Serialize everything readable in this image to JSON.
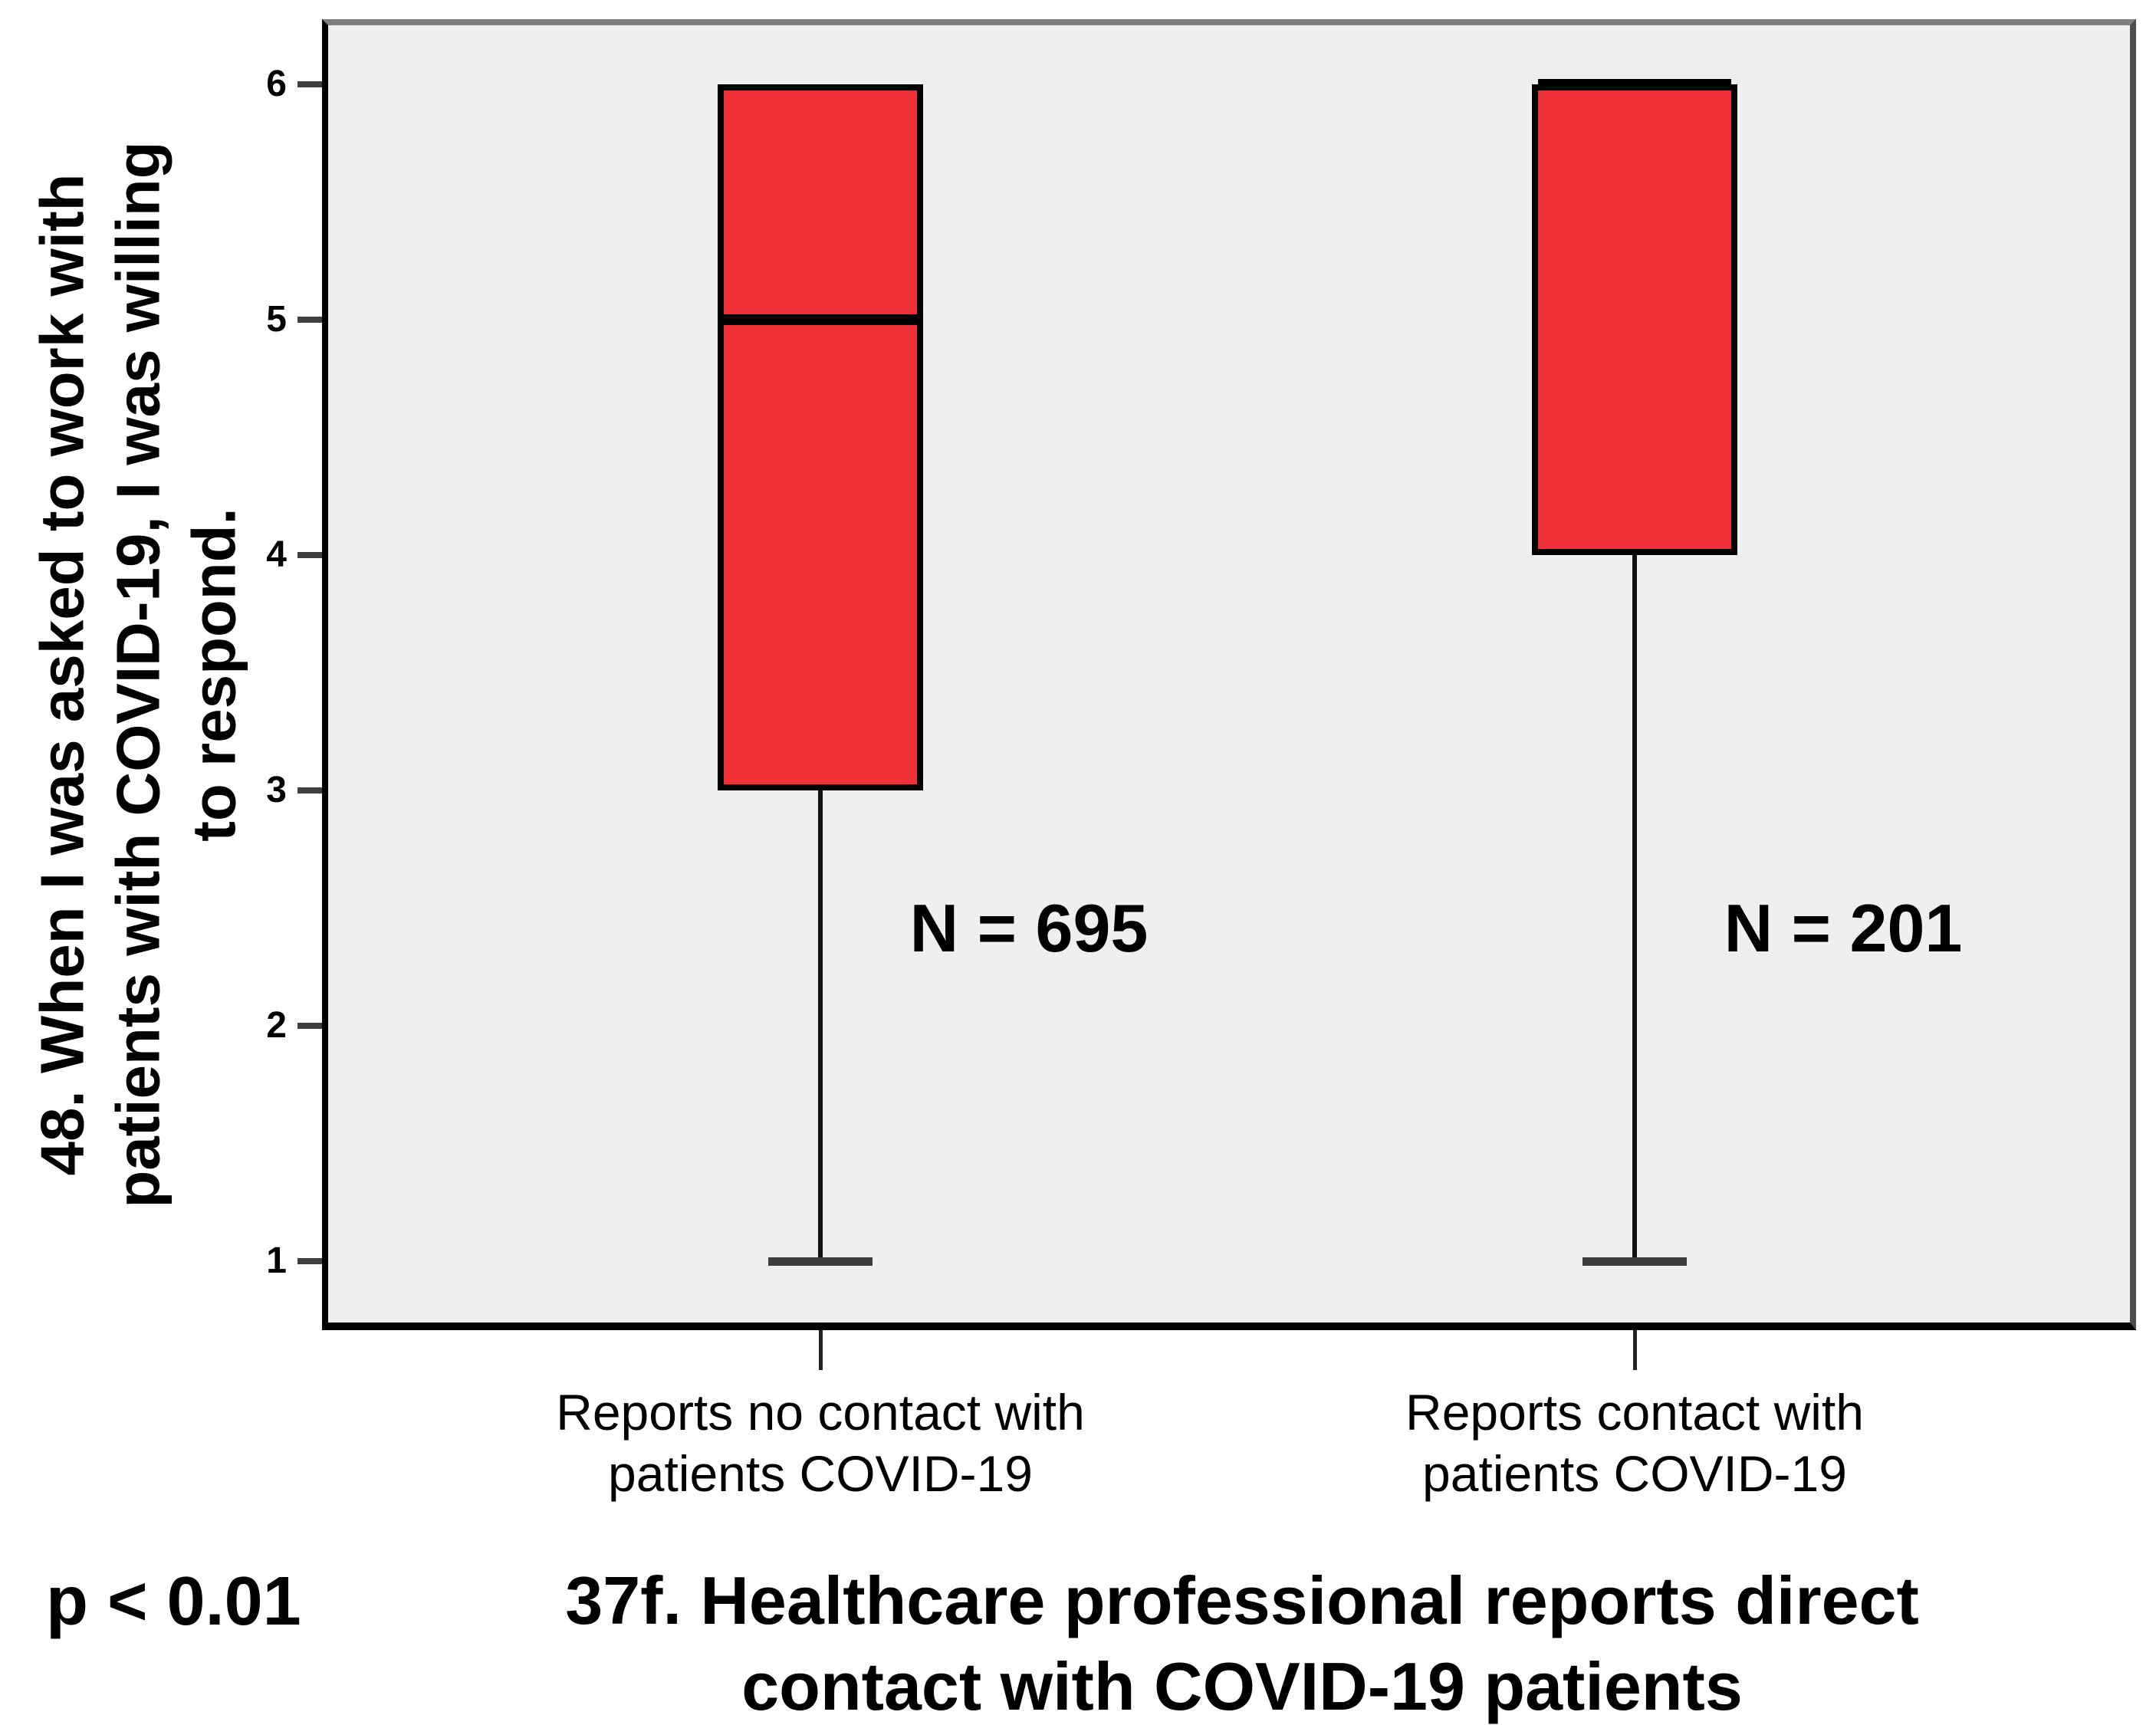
{
  "figure": {
    "y_axis_label": "48. When I was asked to work with\npatients with COVID-19, I was willing\nto respond.",
    "x_axis_title": "37f. Healthcare professional reports direct\ncontact with COVID-19 patients",
    "p_label": "p < 0.01",
    "category_labels": [
      "Reports no contact with\npatients COVID-19",
      "Reports contact with\npatients COVID-19"
    ]
  },
  "chart_data": {
    "type": "boxplot",
    "title": "",
    "xlabel": "37f. Healthcare professional reports direct contact with COVID-19 patients",
    "ylabel": "48. When I was asked to work with patients with COVID-19, I was willing to respond.",
    "yticks": [
      1,
      2,
      3,
      4,
      5,
      6
    ],
    "ylim": [
      1,
      6
    ],
    "grid": false,
    "legend": "none",
    "categories": [
      "Reports no contact with patients COVID-19",
      "Reports contact with patients COVID-19"
    ],
    "series": [
      {
        "name": "Reports no contact with patients COVID-19",
        "n": 695,
        "n_label": "N = 695",
        "min": 1,
        "q1": 3,
        "median": 5,
        "q3": 6,
        "max": 6
      },
      {
        "name": "Reports contact with patients COVID-19",
        "n": 201,
        "n_label": "N = 201",
        "min": 1,
        "q1": 4,
        "median": 6,
        "q3": 6,
        "max": 6
      }
    ],
    "annotations": [
      "N = 695",
      "N = 201",
      "p < 0.01"
    ],
    "box_fill_color": "#ee3038",
    "box_border_color": "#000000",
    "plot_background_color": "#efefef",
    "figure_background_color": "#ffffff"
  }
}
